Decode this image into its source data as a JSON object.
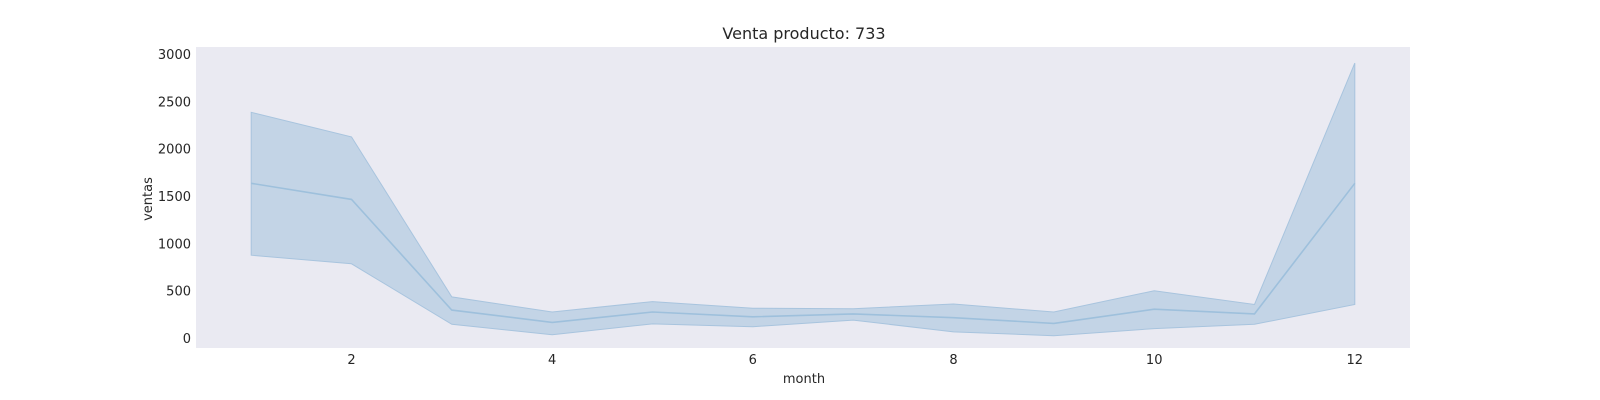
{
  "chart_data": {
    "type": "line",
    "title": "Venta producto: 733",
    "xlabel": "month",
    "ylabel": "ventas",
    "xlim": [
      0.45,
      12.55
    ],
    "ylim": [
      -100,
      3080
    ],
    "x_ticks": [
      2,
      4,
      6,
      8,
      10,
      12
    ],
    "y_ticks": [
      0,
      500,
      1000,
      1500,
      2000,
      2500,
      3000
    ],
    "grid": false,
    "series": [
      {
        "x": [
          1,
          2,
          3,
          4,
          5,
          6,
          7,
          8,
          9,
          10,
          11,
          12
        ],
        "mean": [
          1640,
          1470,
          300,
          170,
          280,
          230,
          260,
          220,
          160,
          310,
          260,
          1640
        ],
        "lower": [
          880,
          790,
          150,
          40,
          155,
          125,
          195,
          70,
          30,
          105,
          150,
          360
        ],
        "upper": [
          2390,
          2130,
          440,
          280,
          390,
          320,
          315,
          365,
          280,
          505,
          360,
          2910
        ]
      }
    ],
    "colors": {
      "background": "#eaeaf2",
      "line": "#9ec0dc",
      "band": "#a8c4de"
    }
  }
}
